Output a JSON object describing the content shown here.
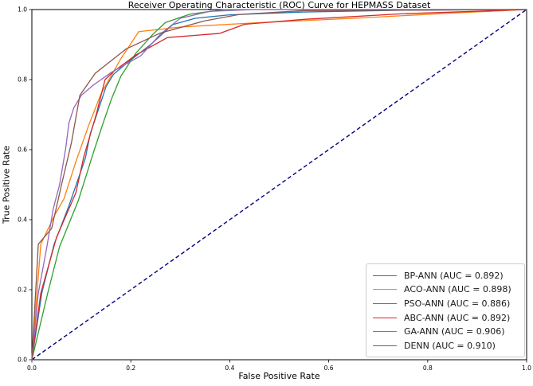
{
  "chart_data": {
    "type": "line",
    "title": "Receiver Operating Characteristic (ROC) Curve for HEPMASS Dataset",
    "xlabel": "False Positive Rate",
    "ylabel": "True Positive Rate",
    "xlim": [
      0.0,
      1.0
    ],
    "ylim": [
      0.0,
      1.0
    ],
    "grid": false,
    "legend_position": "lower right",
    "xticks": [
      {
        "v": 0.0,
        "label": "0.0"
      },
      {
        "v": 0.2,
        "label": "0.2"
      },
      {
        "v": 0.4,
        "label": "0.4"
      },
      {
        "v": 0.6,
        "label": "0.6"
      },
      {
        "v": 0.8,
        "label": "0.8"
      },
      {
        "v": 1.0,
        "label": "1.0"
      }
    ],
    "yticks": [
      {
        "v": 0.0,
        "label": "0.0"
      },
      {
        "v": 0.2,
        "label": "0.2"
      },
      {
        "v": 0.4,
        "label": "0.4"
      },
      {
        "v": 0.6,
        "label": "0.6"
      },
      {
        "v": 0.8,
        "label": "0.8"
      },
      {
        "v": 1.0,
        "label": "1.0"
      }
    ],
    "reference_line": {
      "name": "chance-diagonal",
      "color": "#000080",
      "dashed": true,
      "points": [
        [
          0,
          0
        ],
        [
          1,
          1
        ]
      ]
    },
    "series": [
      {
        "name": "BP-ANN",
        "auc": 0.892,
        "label": "BP-ANN (AUC = 0.892)",
        "color": "#1f77b4",
        "points": [
          [
            0,
            0
          ],
          [
            0.02,
            0.19
          ],
          [
            0.045,
            0.33
          ],
          [
            0.075,
            0.44
          ],
          [
            0.108,
            0.575
          ],
          [
            0.118,
            0.645
          ],
          [
            0.15,
            0.78
          ],
          [
            0.165,
            0.815
          ],
          [
            0.19,
            0.845
          ],
          [
            0.24,
            0.9
          ],
          [
            0.285,
            0.957
          ],
          [
            0.33,
            0.975
          ],
          [
            0.4,
            0.985
          ],
          [
            0.55,
            0.993
          ],
          [
            0.75,
            0.998
          ],
          [
            1,
            1
          ]
        ]
      },
      {
        "name": "ACO-ANN",
        "auc": 0.898,
        "label": "ACO-ANN (AUC = 0.898)",
        "color": "#ff7f0e",
        "points": [
          [
            0,
            0
          ],
          [
            0.018,
            0.33
          ],
          [
            0.045,
            0.41
          ],
          [
            0.065,
            0.46
          ],
          [
            0.09,
            0.57
          ],
          [
            0.115,
            0.67
          ],
          [
            0.14,
            0.76
          ],
          [
            0.16,
            0.81
          ],
          [
            0.18,
            0.86
          ],
          [
            0.216,
            0.937
          ],
          [
            0.3,
            0.95
          ],
          [
            0.45,
            0.962
          ],
          [
            0.65,
            0.975
          ],
          [
            0.85,
            0.99
          ],
          [
            1,
            1
          ]
        ]
      },
      {
        "name": "PSO-ANN",
        "auc": 0.886,
        "label": "PSO-ANN (AUC = 0.886)",
        "color": "#2ca02c",
        "points": [
          [
            0,
            0
          ],
          [
            0.032,
            0.19
          ],
          [
            0.056,
            0.323
          ],
          [
            0.094,
            0.455
          ],
          [
            0.124,
            0.59
          ],
          [
            0.145,
            0.68
          ],
          [
            0.161,
            0.745
          ],
          [
            0.18,
            0.81
          ],
          [
            0.21,
            0.875
          ],
          [
            0.245,
            0.93
          ],
          [
            0.27,
            0.963
          ],
          [
            0.32,
            0.987
          ],
          [
            0.39,
            1.0
          ],
          [
            1,
            1
          ]
        ]
      },
      {
        "name": "ABC-ANN",
        "auc": 0.892,
        "label": "ABC-ANN (AUC = 0.892)",
        "color": "#d62728",
        "points": [
          [
            0,
            0
          ],
          [
            0.018,
            0.19
          ],
          [
            0.05,
            0.35
          ],
          [
            0.089,
            0.477
          ],
          [
            0.105,
            0.58
          ],
          [
            0.13,
            0.7
          ],
          [
            0.148,
            0.8
          ],
          [
            0.165,
            0.823
          ],
          [
            0.21,
            0.87
          ],
          [
            0.274,
            0.92
          ],
          [
            0.38,
            0.932
          ],
          [
            0.43,
            0.958
          ],
          [
            0.55,
            0.972
          ],
          [
            0.75,
            0.988
          ],
          [
            1,
            1
          ]
        ]
      },
      {
        "name": "GA-ANN",
        "auc": 0.906,
        "label": "GA-ANN (AUC = 0.906)",
        "color": "#9467bd",
        "points": [
          [
            0,
            0
          ],
          [
            0.013,
            0.19
          ],
          [
            0.03,
            0.32
          ],
          [
            0.043,
            0.43
          ],
          [
            0.056,
            0.5
          ],
          [
            0.068,
            0.6
          ],
          [
            0.075,
            0.677
          ],
          [
            0.085,
            0.72
          ],
          [
            0.1,
            0.755
          ],
          [
            0.124,
            0.784
          ],
          [
            0.16,
            0.82
          ],
          [
            0.22,
            0.868
          ],
          [
            0.26,
            0.93
          ],
          [
            0.3,
            0.975
          ],
          [
            0.36,
            0.995
          ],
          [
            0.45,
            1.0
          ],
          [
            1,
            1
          ]
        ]
      },
      {
        "name": "DENN",
        "auc": 0.91,
        "label": "DENN (AUC = 0.910)",
        "color": "#8c564b",
        "points": [
          [
            0,
            0
          ],
          [
            0.013,
            0.33
          ],
          [
            0.04,
            0.375
          ],
          [
            0.06,
            0.5
          ],
          [
            0.08,
            0.62
          ],
          [
            0.097,
            0.755
          ],
          [
            0.128,
            0.818
          ],
          [
            0.19,
            0.887
          ],
          [
            0.258,
            0.932
          ],
          [
            0.35,
            0.968
          ],
          [
            0.42,
            0.986
          ],
          [
            0.55,
            0.997
          ],
          [
            1,
            1
          ]
        ]
      }
    ]
  }
}
